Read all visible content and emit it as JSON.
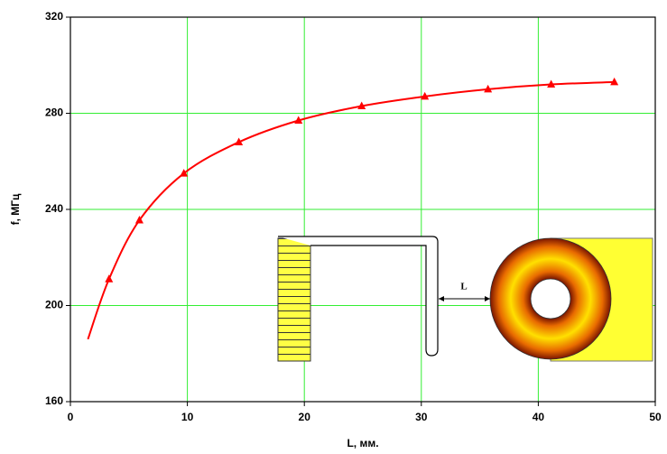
{
  "chart_data": {
    "type": "line",
    "x_label": "L, мм.",
    "y_label": "f, МГц",
    "xlim": [
      0,
      50
    ],
    "xticks": [
      0,
      10,
      20,
      30,
      40,
      50
    ],
    "ylim": [
      160,
      320
    ],
    "yticks": [
      160,
      200,
      240,
      280,
      320
    ],
    "grid": true,
    "grid_color": "#33ee33",
    "series": [
      {
        "color": "#ff0000",
        "marker": "none",
        "smooth": true,
        "x": [
          1.5,
          3.3,
          5.9,
          9.7,
          14.4,
          19.5,
          24.9,
          30.3,
          35.7,
          41.1,
          46.5
        ],
        "values": [
          186,
          211,
          235.5,
          255,
          268,
          277,
          283,
          287,
          290,
          292,
          293
        ]
      },
      {
        "color": "#ff0000",
        "marker": "triangle",
        "smooth": false,
        "x": [
          3.3,
          5.9,
          9.7,
          14.4,
          19.5,
          24.9,
          30.3,
          35.7,
          41.1,
          46.5
        ],
        "values": [
          211,
          235.5,
          255,
          268,
          277,
          283,
          287,
          290,
          292,
          293
        ]
      }
    ],
    "inset_label": "L"
  }
}
